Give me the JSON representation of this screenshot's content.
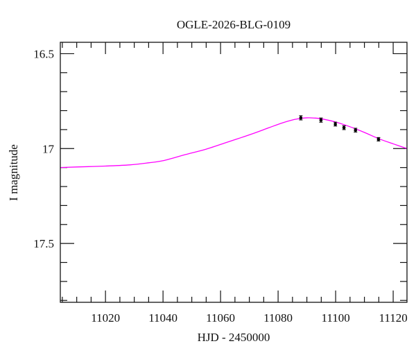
{
  "chart_data": {
    "type": "line",
    "title": "OGLE-2026-BLG-0109",
    "xlabel": "HJD - 2450000",
    "ylabel": "I magnitude",
    "xlim": [
      11004.3,
      11124.8
    ],
    "ylim": [
      17.81,
      16.44
    ],
    "y_inverted": true,
    "grid": false,
    "x_ticks": [
      11020,
      11040,
      11060,
      11080,
      11100,
      11120
    ],
    "x_tick_labels": [
      "11020",
      "11040",
      "11060",
      "11080",
      "11100",
      "11120"
    ],
    "y_ticks": [
      16.5,
      17,
      17.5
    ],
    "y_tick_labels": [
      "16.5",
      "17",
      "17.5"
    ],
    "series": [
      {
        "type": "line",
        "color": "#ff00ff",
        "x": [
          11004.3,
          11010,
          11020,
          11028.4,
          11035,
          11040,
          11047.7,
          11055,
          11062.2,
          11067,
          11071.8,
          11077,
          11081.4,
          11085,
          11087.9,
          11090,
          11092.5,
          11095,
          11100,
          11105,
          11110,
          11115,
          11120,
          11124.8
        ],
        "y": [
          17.1,
          17.097,
          17.092,
          17.086,
          17.075,
          17.064,
          17.032,
          17.003,
          16.967,
          16.943,
          16.918,
          16.889,
          16.865,
          16.849,
          16.841,
          16.838,
          16.839,
          16.843,
          16.86,
          16.885,
          16.915,
          16.948,
          16.975,
          17.0
        ]
      },
      {
        "type": "scatter",
        "color": "#000000",
        "x": [
          11087.9,
          11094.9,
          11099.9,
          11102.9,
          11106.9,
          11114.9
        ],
        "y": [
          16.838,
          16.85,
          16.871,
          16.89,
          16.903,
          16.951
        ],
        "yerr": [
          0.011,
          0.011,
          0.01,
          0.01,
          0.01,
          0.009
        ]
      }
    ]
  }
}
